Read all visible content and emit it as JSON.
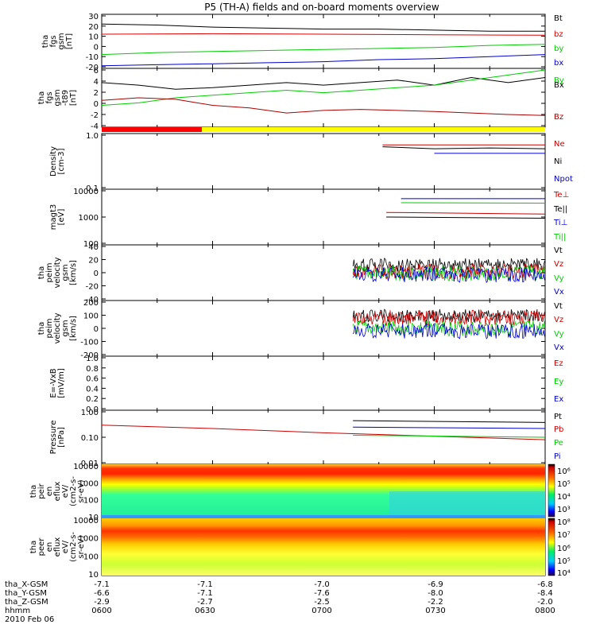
{
  "title": "P5 (TH-A) fields and on-board moments overview",
  "footer": {
    "rows": [
      {
        "label": "tha_X-GSM",
        "values": [
          "-7.1",
          "-7.1",
          "-7.0",
          "-6.9",
          "-6.8"
        ]
      },
      {
        "label": "tha_Y-GSM",
        "values": [
          "-6.6",
          "-7.1",
          "-7.6",
          "-8.0",
          "-8.4"
        ]
      },
      {
        "label": "tha_Z-GSM",
        "values": [
          "-2.9",
          "-2.7",
          "-2.5",
          "-2.2",
          "-2.0"
        ]
      },
      {
        "label": "hhmm",
        "values": [
          "0600",
          "0630",
          "0700",
          "0730",
          "0800"
        ]
      }
    ],
    "date": "2010 Feb 06"
  },
  "colorbar1_ticks": [
    "10⁶",
    "10⁵",
    "10⁴",
    "10³"
  ],
  "colorbar2_ticks": [
    "10⁸",
    "10⁷",
    "10⁶",
    "10⁵",
    "10⁴"
  ],
  "chart_data": [
    {
      "type": "line",
      "ylabel": [
        "tha",
        "fgs",
        "gsm",
        "[nT]"
      ],
      "yticks": [
        "30",
        "20",
        "10",
        "0",
        "-10",
        "-20"
      ],
      "ylim": [
        -20,
        30
      ],
      "legend": [
        {
          "name": "Bt",
          "color": "#000000"
        },
        {
          "name": "bz",
          "color": "#dd0000"
        },
        {
          "name": "by",
          "color": "#00cc00"
        },
        {
          "name": "bx",
          "color": "#0000cc"
        }
      ],
      "series": [
        {
          "name": "Bt",
          "color": "#000000",
          "x": [
            "0600",
            "0615",
            "0630",
            "0645",
            "0700",
            "0715",
            "0730",
            "0745",
            "0800"
          ],
          "y": [
            22,
            21,
            19,
            18,
            17,
            17,
            16,
            15,
            15
          ]
        },
        {
          "name": "bz",
          "color": "#dd0000",
          "x": [
            "0600",
            "0630",
            "0700",
            "0730",
            "0800"
          ],
          "y": [
            12,
            12.5,
            12,
            11.5,
            11
          ]
        },
        {
          "name": "by",
          "color": "#00cc00",
          "x": [
            "0600",
            "0615",
            "0630",
            "0645",
            "0700",
            "0715",
            "0730",
            "0745",
            "0800"
          ],
          "y": [
            -8,
            -6,
            -5,
            -4,
            -3,
            -2,
            -1,
            1,
            2
          ]
        },
        {
          "name": "bx",
          "color": "#0000cc",
          "x": [
            "0600",
            "0615",
            "0630",
            "0645",
            "0700",
            "0715",
            "0730",
            "0745",
            "0800"
          ],
          "y": [
            -19,
            -18,
            -17,
            -16,
            -15,
            -13,
            -12,
            -10,
            -8
          ]
        }
      ]
    },
    {
      "type": "line",
      "ylabel": [
        "tha",
        "fgs",
        "gsm",
        "-t89",
        "[nT]"
      ],
      "yticks": [
        "6",
        "4",
        "2",
        "0",
        "-2",
        "-4"
      ],
      "ylim": [
        -5,
        6
      ],
      "legend": [
        {
          "name": "By",
          "color": "#00cc00"
        },
        {
          "name": "Bx",
          "color": "#000000"
        },
        {
          "name": "Bz",
          "color": "#aa0000"
        }
      ],
      "series": [
        {
          "name": "Bx",
          "color": "#000000",
          "x": [
            "0600",
            "0610",
            "0620",
            "0630",
            "0640",
            "0650",
            "0700",
            "0710",
            "0720",
            "0730",
            "0740",
            "0750",
            "0800"
          ],
          "y": [
            3.5,
            3,
            2.2,
            2.5,
            3,
            3.5,
            3,
            3.5,
            4,
            3,
            4.5,
            3.5,
            4.5
          ]
        },
        {
          "name": "By",
          "color": "#00cc00",
          "x": [
            "0600",
            "0610",
            "0620",
            "0630",
            "0640",
            "0650",
            "0700",
            "0710",
            "0720",
            "0730",
            "0740",
            "0750",
            "0800"
          ],
          "y": [
            -1,
            -0.5,
            0.5,
            1,
            1.5,
            2,
            1.5,
            2,
            2.5,
            3,
            4,
            5,
            6
          ]
        },
        {
          "name": "Bz",
          "color": "#aa0000",
          "x": [
            "0600",
            "0610",
            "0620",
            "0630",
            "0640",
            "0650",
            "0700",
            "0710",
            "0720",
            "0730",
            "0740",
            "0750",
            "0800"
          ],
          "y": [
            0,
            0.5,
            0.2,
            -1,
            -1.5,
            -2.5,
            -2,
            -1.8,
            -2,
            -2.2,
            -2.5,
            -2.8,
            -3
          ]
        }
      ]
    },
    {
      "type": "line",
      "ylabel": [
        "Density",
        "[cm-3]"
      ],
      "yticks": [
        "1.0",
        "0.1"
      ],
      "yscale": "log",
      "ylim": [
        0.1,
        1.0
      ],
      "legend": [
        {
          "name": "Ne",
          "color": "#cc0000"
        },
        {
          "name": "Ni",
          "color": "#000000"
        },
        {
          "name": "Npot",
          "color": "#0000cc"
        }
      ],
      "series": [
        {
          "name": "Ne",
          "color": "#cc0000",
          "x": [
            "0716",
            "0800"
          ],
          "y": [
            0.65,
            0.65
          ]
        },
        {
          "name": "Ni",
          "color": "#000000",
          "x": [
            "0716",
            "0730",
            "0745",
            "0800"
          ],
          "y": [
            0.6,
            0.55,
            0.57,
            0.55
          ]
        },
        {
          "name": "Npot",
          "color": "#0000cc",
          "x": [
            "0730",
            "0800"
          ],
          "y": [
            0.45,
            0.45
          ]
        }
      ]
    },
    {
      "type": "line",
      "ylabel": [
        "magt3",
        "[eV]"
      ],
      "yticks": [
        "10000",
        "1000",
        "100"
      ],
      "yscale": "log",
      "ylim": [
        100,
        10000
      ],
      "legend": [
        {
          "name": "Te⊥",
          "color": "#cc0000"
        },
        {
          "name": "Te||",
          "color": "#000000"
        },
        {
          "name": "Ti⊥",
          "color": "#0000cc"
        },
        {
          "name": "Ti||",
          "color": "#00cc00"
        }
      ],
      "series": [
        {
          "name": "Ti⊥",
          "color": "#0000cc",
          "x": [
            "0721",
            "0800"
          ],
          "y": [
            5000,
            5000
          ]
        },
        {
          "name": "Ti||",
          "color": "#00cc00",
          "x": [
            "0721",
            "0800"
          ],
          "y": [
            3500,
            3400
          ]
        },
        {
          "name": "Te⊥",
          "color": "#cc0000",
          "x": [
            "0717",
            "0800"
          ],
          "y": [
            1500,
            1300
          ]
        },
        {
          "name": "Te||",
          "color": "#000000",
          "x": [
            "0717",
            "0800"
          ],
          "y": [
            1000,
            900
          ]
        }
      ]
    },
    {
      "type": "line",
      "ylabel": [
        "tha",
        "peim",
        "velocity",
        "gsm",
        "[km/s]"
      ],
      "yticks": [
        "40",
        "20",
        "0",
        "-20",
        "-40"
      ],
      "ylim": [
        -40,
        40
      ],
      "legend": [
        {
          "name": "Vt",
          "color": "#000000"
        },
        {
          "name": "Vz",
          "color": "#cc0000"
        },
        {
          "name": "Vy",
          "color": "#00cc00"
        },
        {
          "name": "Vx",
          "color": "#0000cc"
        }
      ],
      "series": [
        {
          "name": "Vt",
          "color": "#000000",
          "x": [
            "0708",
            "0800"
          ],
          "y": [
            12,
            12
          ]
        },
        {
          "name": "Vz",
          "color": "#cc0000",
          "x": [
            "0708",
            "0800"
          ],
          "y": [
            2,
            2
          ]
        },
        {
          "name": "Vy",
          "color": "#00cc00",
          "x": [
            "0708",
            "0800"
          ],
          "y": [
            -1,
            -1
          ]
        },
        {
          "name": "Vx",
          "color": "#0000cc",
          "x": [
            "0708",
            "0800"
          ],
          "y": [
            -3,
            -3
          ]
        }
      ]
    },
    {
      "type": "line",
      "ylabel": [
        "tha",
        "peim",
        "velocity",
        "gsm",
        "[km/s]"
      ],
      "yticks": [
        "200",
        "100",
        "0",
        "-100",
        "-200"
      ],
      "ylim": [
        -200,
        200
      ],
      "legend": [
        {
          "name": "Vt",
          "color": "#000000"
        },
        {
          "name": "Vz",
          "color": "#cc0000"
        },
        {
          "name": "Vy",
          "color": "#00cc00"
        },
        {
          "name": "Vx",
          "color": "#0000cc"
        }
      ],
      "series": [
        {
          "name": "Vt",
          "color": "#000000",
          "x": [
            "0708",
            "0800"
          ],
          "y": [
            95,
            95
          ]
        },
        {
          "name": "Vz",
          "color": "#cc0000",
          "x": [
            "0708",
            "0800"
          ],
          "y": [
            80,
            80
          ]
        },
        {
          "name": "Vy",
          "color": "#00cc00",
          "x": [
            "0708",
            "0800"
          ],
          "y": [
            0,
            0
          ]
        },
        {
          "name": "Vx",
          "color": "#0000cc",
          "x": [
            "0708",
            "0800"
          ],
          "y": [
            -20,
            -20
          ]
        }
      ]
    },
    {
      "type": "line",
      "ylabel": [
        "E=-VxB",
        "[mV/m]"
      ],
      "yticks": [
        "1.0",
        "0.8",
        "0.6",
        "0.4",
        "0.2",
        "0.0"
      ],
      "ylim": [
        0,
        1
      ],
      "legend": [
        {
          "name": "Ez",
          "color": "#cc0000"
        },
        {
          "name": "Ey",
          "color": "#00cc00"
        },
        {
          "name": "Ex",
          "color": "#0000cc"
        }
      ],
      "series": []
    },
    {
      "type": "line",
      "ylabel": [
        "Pressure",
        "[nPa]"
      ],
      "yticks": [
        "1.00",
        "0.10",
        "0.01"
      ],
      "yscale": "log",
      "ylim": [
        0.01,
        1.0
      ],
      "legend": [
        {
          "name": "Pt",
          "color": "#000000"
        },
        {
          "name": "Pb",
          "color": "#cc0000"
        },
        {
          "name": "Pe",
          "color": "#00cc00"
        },
        {
          "name": "Pi",
          "color": "#0000cc"
        }
      ],
      "series": [
        {
          "name": "Pb",
          "color": "#cc0000",
          "x": [
            "0600",
            "0630",
            "0700",
            "0730",
            "0800"
          ],
          "y": [
            0.3,
            0.22,
            0.15,
            0.11,
            0.08
          ]
        },
        {
          "name": "Pt",
          "color": "#000000",
          "x": [
            "0708",
            "0800"
          ],
          "y": [
            0.45,
            0.38
          ]
        },
        {
          "name": "Pi",
          "color": "#0000cc",
          "x": [
            "0708",
            "0800"
          ],
          "y": [
            0.25,
            0.22
          ]
        },
        {
          "name": "Pe",
          "color": "#00cc00",
          "x": [
            "0708",
            "0800"
          ],
          "y": [
            0.12,
            0.1
          ]
        }
      ]
    },
    {
      "type": "heatmap",
      "ylabel": [
        "tha",
        "peir",
        "en",
        "eflux",
        "eV/",
        "(cm2-s-",
        "sr-eV)"
      ],
      "yticks": [
        "10000",
        "1000",
        "100",
        "10"
      ],
      "yscale": "log"
    },
    {
      "type": "heatmap",
      "ylabel": [
        "tha",
        "peer",
        "en",
        "eflux",
        "eV/",
        "(cm2-s-",
        "sr-eV)"
      ],
      "yticks": [
        "10000",
        "1000",
        "100",
        "10"
      ],
      "yscale": "log"
    }
  ]
}
